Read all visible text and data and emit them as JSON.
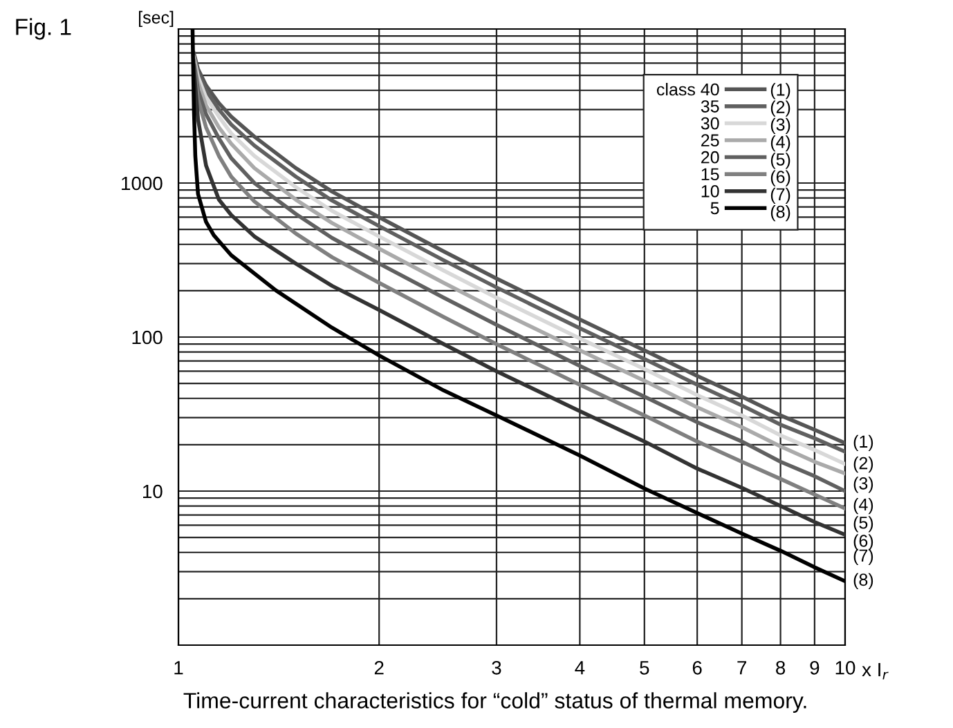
{
  "chart_data": {
    "type": "line",
    "title": "Fig. 1",
    "ylabel": "[sec]",
    "xlabel": "x I$_{r}$",
    "log": "xy",
    "grid": true,
    "legend": "top right",
    "line_style": "solid",
    "marker": "none",
    "xlim": [
      1,
      10
    ],
    "xticks": [
      1,
      2,
      3,
      4,
      5,
      6,
      7,
      8,
      9,
      10
    ],
    "ylim": [
      1,
      10000
    ],
    "yticks": [
      {
        "value": 1,
        "label": null
      },
      10,
      100,
      1000,
      {
        "value": 10000,
        "label": null
      }
    ],
    "x": [
      1.054,
      1.07,
      1.1,
      1.15,
      1.2,
      1.3,
      1.5,
      1.7,
      2,
      2.5,
      3,
      4,
      5,
      6,
      7,
      8,
      9,
      10
    ],
    "series": [
      {
        "name": "class 40",
        "color": "#555555",
        "values": [
          7000,
          5500,
          4300,
          3300,
          2700,
          2000,
          1250,
          880,
          600,
          360,
          240,
          130,
          82,
          56,
          41,
          31,
          25,
          20.5
        ]
      },
      {
        "name": "35",
        "color": "#606060",
        "values": [
          6800,
          5200,
          4000,
          3000,
          2400,
          1750,
          1100,
          770,
          525,
          315,
          210,
          114,
          72,
          49,
          36,
          27,
          22,
          18
        ]
      },
      {
        "name": "30",
        "color": "#d8d8d8",
        "values": [
          6600,
          4900,
          3600,
          2700,
          2100,
          1500,
          940,
          660,
          450,
          270,
          180,
          98,
          62,
          42,
          31,
          23,
          18.5,
          15
        ]
      },
      {
        "name": "25",
        "color": "#aaaaaa",
        "values": [
          6400,
          4500,
          3200,
          2300,
          1800,
          1250,
          780,
          550,
          375,
          225,
          150,
          82,
          52,
          35,
          26,
          19.5,
          15.5,
          13
        ]
      },
      {
        "name": "20",
        "color": "#606060",
        "values": [
          6200,
          4000,
          2800,
          1950,
          1450,
          1000,
          630,
          440,
          300,
          180,
          120,
          65,
          41,
          28,
          21,
          15.5,
          12.5,
          10
        ]
      },
      {
        "name": "15",
        "color": "#808080",
        "values": [
          6000,
          3500,
          2300,
          1500,
          1100,
          760,
          470,
          330,
          225,
          135,
          90,
          49,
          31,
          21,
          15.5,
          12,
          9.5,
          7.7
        ]
      },
      {
        "name": "10",
        "color": "#333333",
        "values": [
          5800,
          2600,
          1300,
          780,
          620,
          450,
          300,
          215,
          150,
          90,
          60,
          33,
          21,
          14,
          10.5,
          8,
          6.3,
          5.2
        ]
      },
      {
        "name": "5",
        "color": "#000000",
        "x": [
          1.05,
          1.055,
          1.06,
          1.07,
          1.1,
          1.13,
          1.2,
          1.4,
          1.7,
          2,
          2.5,
          3,
          4,
          5,
          6,
          7,
          8,
          9,
          10
        ],
        "values": [
          10000,
          3000,
          1500,
          850,
          560,
          458,
          340,
          201,
          115,
          76,
          45,
          31,
          17,
          10.4,
          7.2,
          5.3,
          4.1,
          3.2,
          2.6
        ]
      }
    ],
    "annotations": [
      "(1)",
      "(2)",
      "(3)",
      "(4)",
      "(5)",
      "(6)",
      "(7)",
      "(8)",
      "Time-current characteristics for “cold” status of thermal memory."
    ]
  }
}
